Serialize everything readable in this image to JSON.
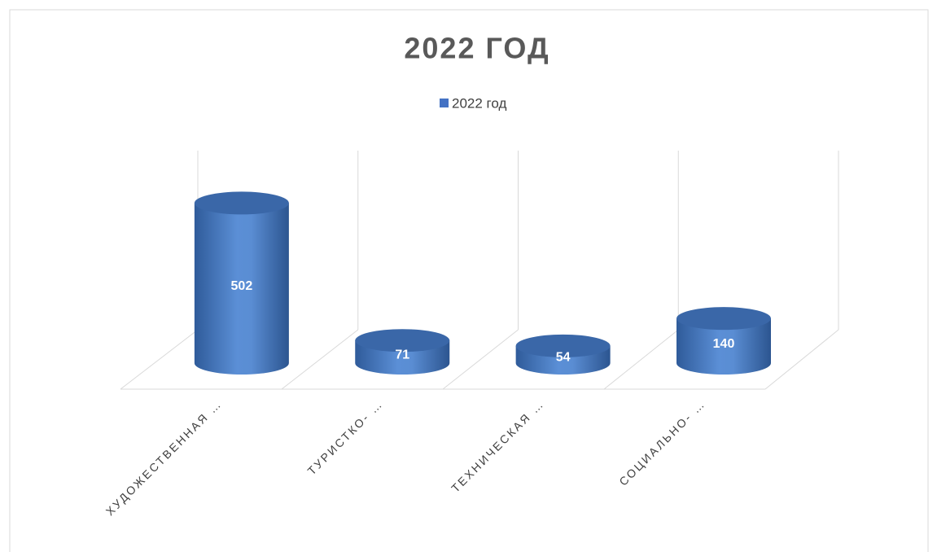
{
  "chart_data": {
    "type": "bar",
    "title": "2022 ГОД",
    "categories": [
      "ХУДОЖЕСТВЕННАЯ …",
      "ТУРИСТКО- …",
      "ТЕХНИЧЕСКАЯ …",
      "СОЦИАЛЬНО- …"
    ],
    "series": [
      {
        "name": "2022 год",
        "color": "#4472c4",
        "values": [
          502,
          71,
          54,
          140
        ]
      }
    ],
    "ylim": [
      0,
      600
    ],
    "legend": "top"
  }
}
